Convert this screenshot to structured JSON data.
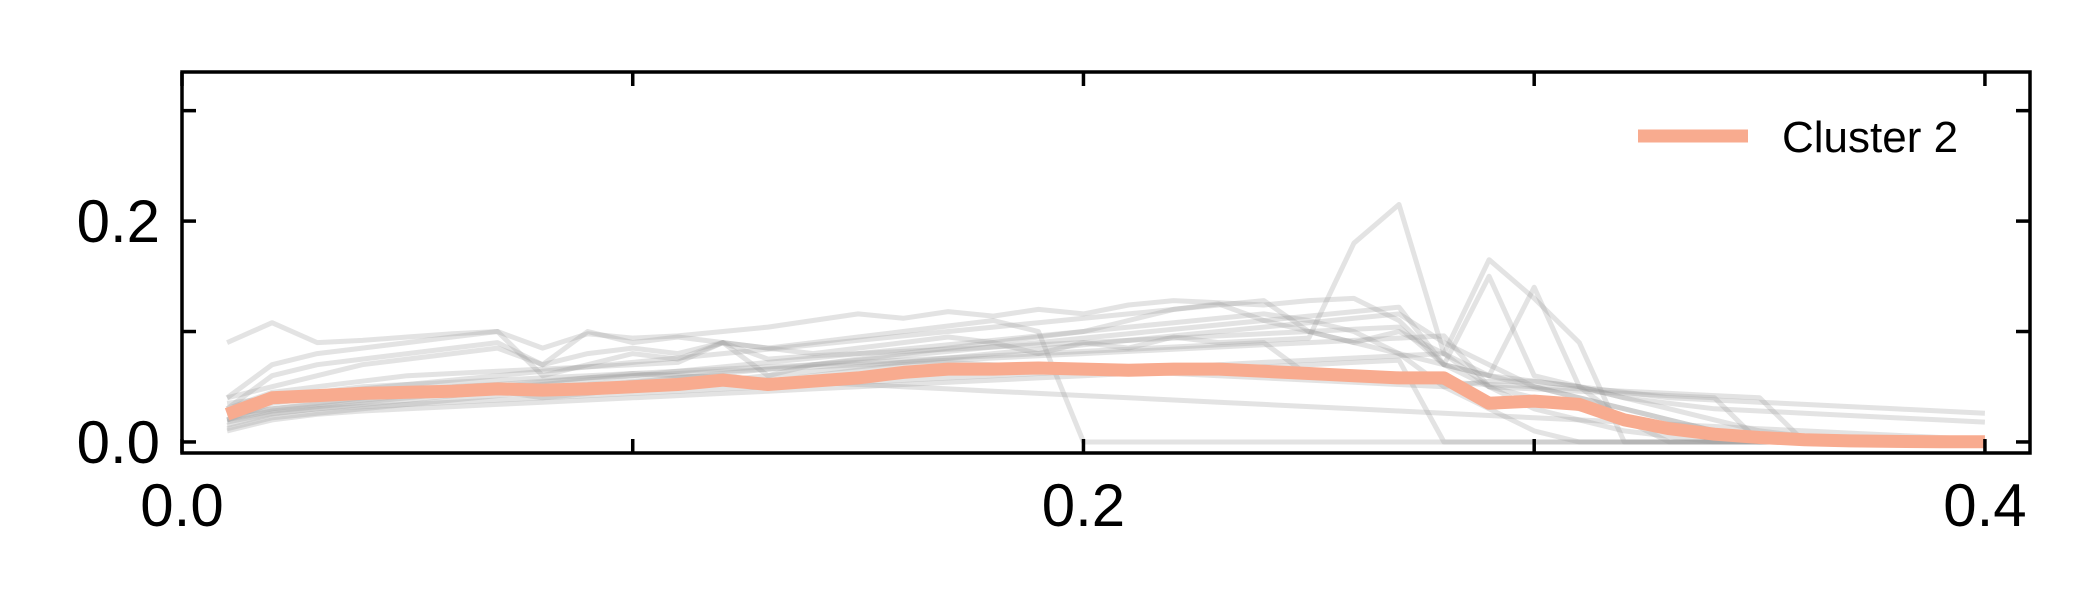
{
  "chart_data": {
    "type": "line",
    "title": "",
    "xlabel": "",
    "ylabel": "",
    "xlim": [
      0.0,
      0.41
    ],
    "ylim": [
      -0.01,
      0.335
    ],
    "xticks": [
      0.0,
      0.1,
      0.2,
      0.3,
      0.4
    ],
    "xtick_labels": [
      "0.0",
      "",
      "0.2",
      "",
      "0.4"
    ],
    "yticks": [
      0.0,
      0.1,
      0.2,
      0.3
    ],
    "ytick_labels": [
      "0.0",
      "",
      "0.2",
      ""
    ],
    "grid": false,
    "legend": {
      "position": "top-right",
      "entries": [
        "Cluster 2"
      ]
    },
    "colors": {
      "highlight": "#f8ab8f",
      "background_series": "#9a9a9a"
    },
    "x": [
      0.01,
      0.02,
      0.03,
      0.04,
      0.05,
      0.06,
      0.07,
      0.08,
      0.09,
      0.1,
      0.11,
      0.12,
      0.13,
      0.14,
      0.15,
      0.16,
      0.17,
      0.18,
      0.19,
      0.2,
      0.21,
      0.22,
      0.23,
      0.24,
      0.25,
      0.26,
      0.27,
      0.28,
      0.29,
      0.3,
      0.31,
      0.32,
      0.33,
      0.34,
      0.35,
      0.36,
      0.37,
      0.38,
      0.39,
      0.4
    ],
    "series": [
      {
        "name": "Cluster 2",
        "highlight": true,
        "values": [
          0.025,
          0.04,
          0.042,
          0.044,
          0.045,
          0.046,
          0.048,
          0.047,
          0.048,
          0.05,
          0.052,
          0.056,
          0.052,
          0.055,
          0.058,
          0.063,
          0.066,
          0.066,
          0.067,
          0.066,
          0.065,
          0.066,
          0.066,
          0.064,
          0.062,
          0.06,
          0.058,
          0.058,
          0.035,
          0.037,
          0.034,
          0.02,
          0.012,
          0.007,
          0.004,
          0.002,
          0.001,
          0.0005,
          0.0002,
          0.0001
        ]
      },
      {
        "values": [
          0.09,
          0.108,
          0.09,
          0.092,
          0.095,
          0.098,
          0.1,
          0.085,
          0.098,
          0.094,
          0.096,
          0.1,
          0.104,
          0.11,
          0.116,
          0.112,
          0.118,
          0.114,
          0.12,
          0.116,
          0.124,
          0.128,
          0.126,
          0.124,
          0.128,
          0.13,
          0.11,
          0.07,
          0.15,
          0.06,
          0.05,
          0.04,
          0.035,
          0.03,
          0.028,
          0.026,
          0.024,
          0.022,
          0.02,
          0.018
        ]
      },
      {
        "values": [
          0.04,
          0.07,
          0.08,
          0.085,
          0.09,
          0.095,
          0.1,
          0.06,
          0.07,
          0.08,
          0.075,
          0.09,
          0.085,
          0.08,
          0.085,
          0.09,
          0.095,
          0.09,
          0.08,
          0.09,
          0.085,
          0.095,
          0.09,
          0.092,
          0.094,
          0.18,
          0.215,
          0.08,
          0.05,
          0.04,
          0.03,
          0.02,
          0.01,
          0.005,
          0.0,
          0.0,
          0.0,
          0.0,
          0.0,
          0.0
        ]
      },
      {
        "values": [
          0.03,
          0.06,
          0.07,
          0.075,
          0.08,
          0.085,
          0.09,
          0.07,
          0.1,
          0.09,
          0.095,
          0.09,
          0.085,
          0.09,
          0.095,
          0.1,
          0.105,
          0.11,
          0.1,
          0.0,
          0.0,
          0.0,
          0.0,
          0.0,
          0.0,
          0.0,
          0.0,
          0.0,
          0.0,
          0.0,
          0.0,
          0.0,
          0.0,
          0.0,
          0.0,
          0.0,
          0.0,
          0.0,
          0.0,
          0.0
        ]
      },
      {
        "values": [
          0.04,
          0.05,
          0.06,
          0.07,
          0.075,
          0.08,
          0.085,
          0.07,
          0.08,
          0.085,
          0.08,
          0.09,
          0.06,
          0.07,
          0.075,
          0.08,
          0.085,
          0.09,
          0.095,
          0.1,
          0.11,
          0.12,
          0.125,
          0.11,
          0.1,
          0.09,
          0.1,
          0.08,
          0.165,
          0.13,
          0.09,
          0.0,
          0.0,
          0.0,
          0.0,
          0.0,
          0.0,
          0.0,
          0.0,
          0.0
        ]
      },
      {
        "values": [
          0.02,
          0.03,
          0.035,
          0.04,
          0.045,
          0.05,
          0.052,
          0.055,
          0.058,
          0.06,
          0.062,
          0.064,
          0.066,
          0.068,
          0.07,
          0.072,
          0.074,
          0.076,
          0.078,
          0.08,
          0.082,
          0.084,
          0.086,
          0.088,
          0.09,
          0.092,
          0.094,
          0.096,
          0.05,
          0.048,
          0.046,
          0.044,
          0.042,
          0.04,
          0.0,
          0.0,
          0.0,
          0.0,
          0.0,
          0.0
        ]
      },
      {
        "values": [
          0.015,
          0.025,
          0.03,
          0.032,
          0.034,
          0.036,
          0.038,
          0.04,
          0.042,
          0.044,
          0.046,
          0.048,
          0.05,
          0.052,
          0.054,
          0.056,
          0.058,
          0.06,
          0.062,
          0.064,
          0.066,
          0.068,
          0.07,
          0.072,
          0.074,
          0.076,
          0.078,
          0.08,
          0.06,
          0.055,
          0.05,
          0.045,
          0.04,
          0.038,
          0.036,
          0.034,
          0.032,
          0.03,
          0.028,
          0.026
        ]
      },
      {
        "values": [
          0.02,
          0.035,
          0.04,
          0.042,
          0.044,
          0.046,
          0.048,
          0.05,
          0.052,
          0.055,
          0.058,
          0.06,
          0.055,
          0.06,
          0.065,
          0.07,
          0.072,
          0.07,
          0.068,
          0.066,
          0.064,
          0.062,
          0.06,
          0.058,
          0.056,
          0.054,
          0.052,
          0.05,
          0.055,
          0.055,
          0.05,
          0.04,
          0.03,
          0.02,
          0.01,
          0.005,
          0.0,
          0.0,
          0.0,
          0.0
        ]
      },
      {
        "values": [
          0.01,
          0.02,
          0.025,
          0.028,
          0.03,
          0.032,
          0.034,
          0.036,
          0.038,
          0.04,
          0.042,
          0.044,
          0.046,
          0.048,
          0.05,
          0.052,
          0.054,
          0.056,
          0.058,
          0.06,
          0.062,
          0.064,
          0.066,
          0.068,
          0.07,
          0.072,
          0.074,
          0.0,
          0.0,
          0.0,
          0.0,
          0.0,
          0.0,
          0.0,
          0.0,
          0.0,
          0.0,
          0.0,
          0.0,
          0.0
        ]
      },
      {
        "values": [
          0.03,
          0.045,
          0.05,
          0.055,
          0.06,
          0.062,
          0.064,
          0.066,
          0.068,
          0.07,
          0.072,
          0.09,
          0.075,
          0.078,
          0.08,
          0.082,
          0.084,
          0.086,
          0.088,
          0.09,
          0.092,
          0.094,
          0.096,
          0.098,
          0.1,
          0.102,
          0.104,
          0.07,
          0.06,
          0.14,
          0.05,
          0.02,
          0.0,
          0.0,
          0.0,
          0.0,
          0.0,
          0.0,
          0.0,
          0.0
        ]
      },
      {
        "values": [
          0.012,
          0.022,
          0.026,
          0.03,
          0.034,
          0.038,
          0.042,
          0.046,
          0.05,
          0.054,
          0.058,
          0.062,
          0.066,
          0.07,
          0.074,
          0.078,
          0.082,
          0.086,
          0.09,
          0.094,
          0.098,
          0.102,
          0.106,
          0.11,
          0.114,
          0.118,
          0.122,
          0.07,
          0.05,
          0.03,
          0.02,
          0.01,
          0.005,
          0.0,
          0.0,
          0.0,
          0.0,
          0.0,
          0.0,
          0.0
        ]
      },
      {
        "values": [
          0.035,
          0.04,
          0.045,
          0.05,
          0.052,
          0.054,
          0.056,
          0.058,
          0.06,
          0.062,
          0.064,
          0.066,
          0.068,
          0.07,
          0.072,
          0.074,
          0.076,
          0.078,
          0.08,
          0.082,
          0.084,
          0.086,
          0.088,
          0.09,
          0.06,
          0.058,
          0.056,
          0.054,
          0.052,
          0.05,
          0.048,
          0.046,
          0.044,
          0.042,
          0.04,
          0.0,
          0.0,
          0.0,
          0.0,
          0.0
        ]
      },
      {
        "values": [
          0.02,
          0.028,
          0.032,
          0.036,
          0.04,
          0.044,
          0.048,
          0.052,
          0.056,
          0.06,
          0.064,
          0.068,
          0.072,
          0.076,
          0.08,
          0.084,
          0.088,
          0.092,
          0.096,
          0.1,
          0.104,
          0.108,
          0.112,
          0.116,
          0.11,
          0.1,
          0.08,
          0.05,
          0.03,
          0.01,
          0.0,
          0.0,
          0.0,
          0.0,
          0.0,
          0.0,
          0.0,
          0.0,
          0.0,
          0.0
        ]
      },
      {
        "values": [
          0.025,
          0.03,
          0.034,
          0.038,
          0.042,
          0.046,
          0.05,
          0.054,
          0.058,
          0.062,
          0.06,
          0.058,
          0.056,
          0.054,
          0.052,
          0.05,
          0.048,
          0.046,
          0.044,
          0.042,
          0.04,
          0.038,
          0.036,
          0.034,
          0.032,
          0.03,
          0.028,
          0.026,
          0.024,
          0.022,
          0.02,
          0.018,
          0.016,
          0.014,
          0.012,
          0.01,
          0.008,
          0.006,
          0.004,
          0.002
        ]
      },
      {
        "values": [
          0.018,
          0.026,
          0.03,
          0.034,
          0.038,
          0.042,
          0.046,
          0.04,
          0.044,
          0.048,
          0.052,
          0.056,
          0.06,
          0.064,
          0.068,
          0.072,
          0.076,
          0.08,
          0.084,
          0.088,
          0.092,
          0.096,
          0.1,
          0.104,
          0.108,
          0.112,
          0.116,
          0.09,
          0.07,
          0.05,
          0.04,
          0.03,
          0.02,
          0.01,
          0.0,
          0.0,
          0.0,
          0.0,
          0.0,
          0.0
        ]
      },
      {
        "values": [
          0.028,
          0.038,
          0.044,
          0.048,
          0.052,
          0.056,
          0.06,
          0.064,
          0.068,
          0.072,
          0.076,
          0.08,
          0.084,
          0.088,
          0.092,
          0.096,
          0.1,
          0.104,
          0.108,
          0.112,
          0.116,
          0.12,
          0.124,
          0.128,
          0.1,
          0.09,
          0.08,
          0.07,
          0.06,
          0.05,
          0.04,
          0.03,
          0.02,
          0.01,
          0.0,
          0.0,
          0.0,
          0.0,
          0.0,
          0.0
        ]
      }
    ]
  }
}
